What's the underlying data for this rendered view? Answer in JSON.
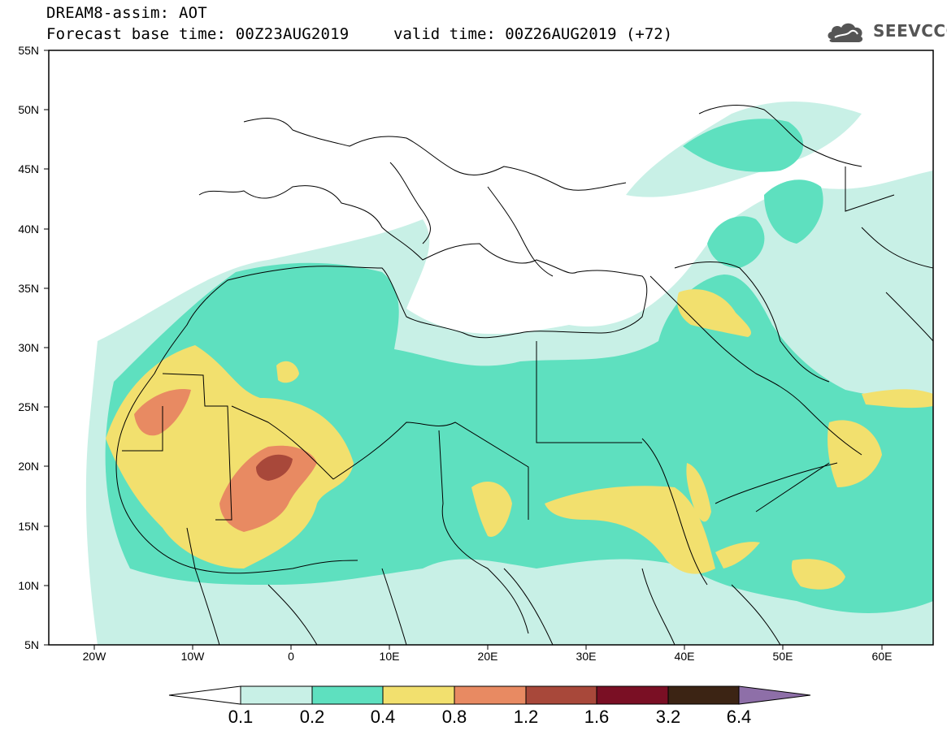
{
  "header": {
    "title_line1": "DREAM8-assim: AOT",
    "title_line2": "Forecast base time: 00Z23AUG2019",
    "valid_time": "valid time: 00Z26AUG2019 (+72)",
    "logo_text": "SEEVCCC",
    "logo_icon": "cloud-icon"
  },
  "map": {
    "lat_labels": [
      "55N",
      "50N",
      "45N",
      "40N",
      "35N",
      "30N",
      "25N",
      "20N",
      "15N",
      "10N",
      "5N"
    ],
    "lon_labels": [
      "20W",
      "10W",
      "0",
      "10E",
      "20E",
      "30E",
      "40E",
      "50E",
      "60E"
    ],
    "lat_range": [
      5,
      55
    ],
    "lon_range": [
      -25,
      65
    ]
  },
  "colorbar": {
    "labels": [
      "0.1",
      "0.2",
      "0.4",
      "0.8",
      "1.2",
      "1.6",
      "3.2",
      "6.4"
    ],
    "colors": [
      "#ffffff",
      "#c8f0e6",
      "#5ee0bf",
      "#f2e06e",
      "#e88a62",
      "#a8483a",
      "#7a0f24",
      "#3c2414",
      "#8e6fa8"
    ]
  }
}
